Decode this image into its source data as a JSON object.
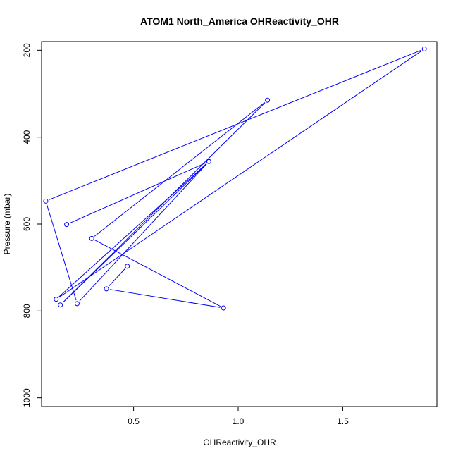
{
  "chart_data": {
    "type": "line",
    "title": "ATOM1 North_America OHReactivity_OHR",
    "xlabel": "OHReactivity_OHR",
    "ylabel": "Pressure (mbar)",
    "xlim": [
      0.06,
      1.95
    ],
    "ylim": [
      1020,
      180
    ],
    "y_reversed": true,
    "x_ticks": [
      {
        "value": 0.5,
        "label": "0.5"
      },
      {
        "value": 1.0,
        "label": "1.0"
      },
      {
        "value": 1.5,
        "label": "1.5"
      }
    ],
    "y_ticks": [
      {
        "value": 200,
        "label": "200"
      },
      {
        "value": 400,
        "label": "400"
      },
      {
        "value": 600,
        "label": "600"
      },
      {
        "value": 800,
        "label": "800"
      },
      {
        "value": 1000,
        "label": "1000"
      }
    ],
    "series": [
      {
        "color": "#0000ff",
        "marker": "open-circle",
        "points": [
          {
            "x": 0.47,
            "y": 697
          },
          {
            "x": 0.37,
            "y": 749
          },
          {
            "x": 0.93,
            "y": 793
          },
          {
            "x": 0.3,
            "y": 633
          },
          {
            "x": 1.14,
            "y": 315
          },
          {
            "x": 0.15,
            "y": 786
          },
          {
            "x": 0.86,
            "y": 456
          },
          {
            "x": 0.23,
            "y": 783
          },
          {
            "x": 0.08,
            "y": 547
          },
          {
            "x": 1.89,
            "y": 197
          },
          {
            "x": 0.13,
            "y": 773
          },
          {
            "x": 0.86,
            "y": 456
          },
          {
            "x": 0.18,
            "y": 601
          }
        ]
      }
    ],
    "grid": false,
    "legend": "none"
  }
}
